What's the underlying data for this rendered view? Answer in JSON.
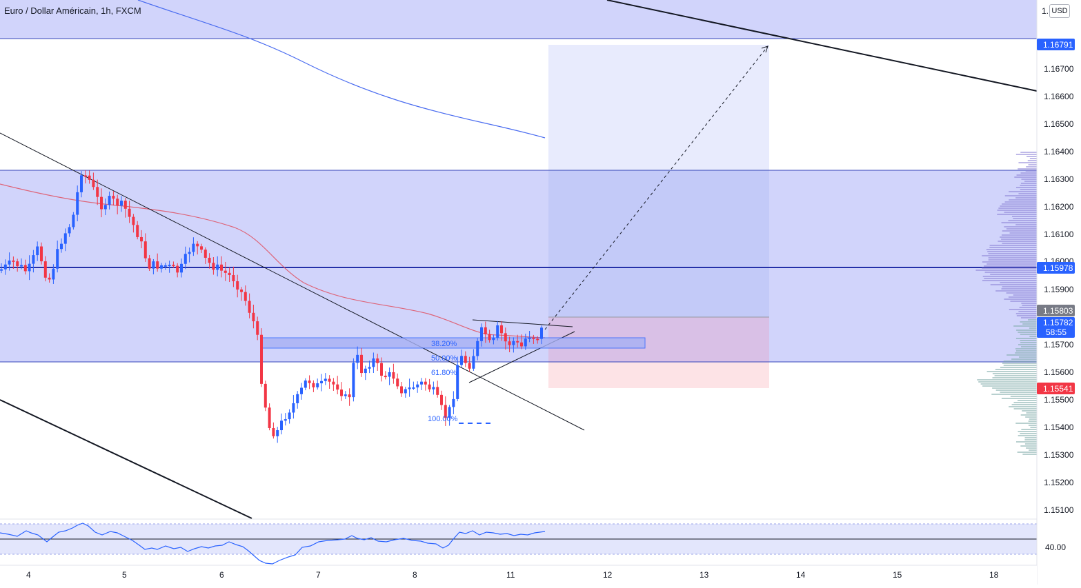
{
  "header": {
    "title": "Euro / Dollar Américain, 1h, FXCM",
    "currency": "USD"
  },
  "colors": {
    "bull": "#2962ff",
    "bear": "#f23645",
    "zone_fill": "#d1d4fb",
    "zone_line": "#3545b8",
    "ema_fast": "#e05060",
    "ema_slow": "#4a6cf0",
    "target_fill": "#c7cdf8",
    "stop_fill": "#fde3e6",
    "rsi_line": "#2962ff"
  },
  "price_axis": {
    "ticks": [
      "1.16700",
      "1.16600",
      "1.16500",
      "1.16400",
      "1.16300",
      "1.16200",
      "1.16100",
      "1.16000",
      "1.15900",
      "1.15700",
      "1.15600",
      "1.15500",
      "1.15400",
      "1.15300",
      "1.15200",
      "1.15100"
    ],
    "top_tick_partial": "1."
  },
  "price_tags": [
    {
      "value": "1.16791",
      "color": "#2962ff"
    },
    {
      "value": "1.15978",
      "color": "#2962ff"
    },
    {
      "value": "1.15803",
      "color": "#787b86"
    },
    {
      "value": "1.15782",
      "color": "#2962ff"
    },
    {
      "value": "1.15541",
      "color": "#f23645"
    }
  ],
  "countdown": "58:55",
  "rsi_axis_label": "40.00",
  "date_axis": [
    "4",
    "5",
    "6",
    "7",
    "8",
    "11",
    "12",
    "13",
    "14",
    "15",
    "18"
  ],
  "fib_levels": [
    {
      "label": "38.20%"
    },
    {
      "label": "50.00%"
    },
    {
      "label": "61.80%"
    },
    {
      "label": "100.00%"
    }
  ],
  "chart_data": {
    "type": "candlestick",
    "symbol": "EURUSD",
    "timeframe": "1h",
    "y_range": [
      1.15025,
      1.17195
    ],
    "zones": [
      {
        "top": 1.17195,
        "bottom": 1.16827
      },
      {
        "top": 1.16331,
        "bottom": 1.15635
      }
    ],
    "horizontal_lines": [
      1.16827,
      1.16331,
      1.15978,
      1.15635
    ],
    "position": {
      "entry": 1.15803,
      "target": 1.16791,
      "stop": 1.15541
    },
    "fib_box_top": 1.15722,
    "fib_box_bottom": 1.15686,
    "fib_prices": [
      1.15707,
      1.15646,
      1.15596,
      1.1542
    ]
  }
}
